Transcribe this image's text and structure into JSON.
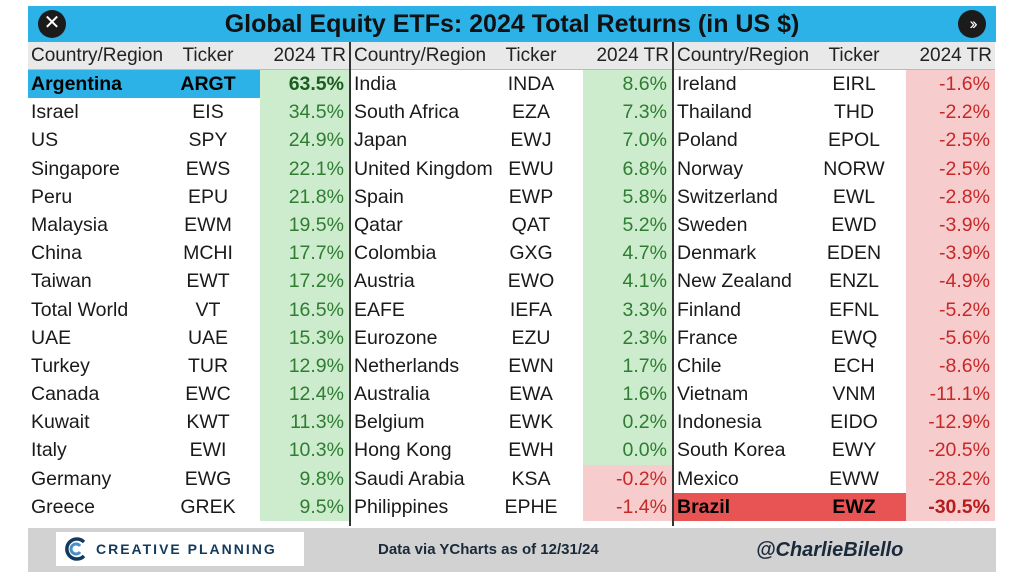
{
  "title": "Global Equity ETFs: 2024 Total Returns (in US $)",
  "icons": {
    "close": "close-icon",
    "next": "double-chevron-right-icon"
  },
  "colors": {
    "title_bar": "#2db2e8",
    "positive_bg": "#cdeccd",
    "positive_text": "#2e7d32",
    "negative_bg": "#f7cccc",
    "negative_text": "#c62828",
    "top_highlight": "#2db2e8",
    "bottom_highlight": "#e85454"
  },
  "headers": {
    "country": "Country/Region",
    "ticker": "Ticker",
    "return": "2024 TR"
  },
  "chart_data": {
    "type": "table",
    "title": "Global Equity ETFs: 2024 Total Returns (in US $)",
    "columns": [
      "Country/Region",
      "Ticker",
      "2024 TR"
    ],
    "rows": [
      {
        "country": "Argentina",
        "ticker": "ARGT",
        "value": 63.5,
        "label": "63.5%"
      },
      {
        "country": "Israel",
        "ticker": "EIS",
        "value": 34.5,
        "label": "34.5%"
      },
      {
        "country": "US",
        "ticker": "SPY",
        "value": 24.9,
        "label": "24.9%"
      },
      {
        "country": "Singapore",
        "ticker": "EWS",
        "value": 22.1,
        "label": "22.1%"
      },
      {
        "country": "Peru",
        "ticker": "EPU",
        "value": 21.8,
        "label": "21.8%"
      },
      {
        "country": "Malaysia",
        "ticker": "EWM",
        "value": 19.5,
        "label": "19.5%"
      },
      {
        "country": "China",
        "ticker": "MCHI",
        "value": 17.7,
        "label": "17.7%"
      },
      {
        "country": "Taiwan",
        "ticker": "EWT",
        "value": 17.2,
        "label": "17.2%"
      },
      {
        "country": "Total World",
        "ticker": "VT",
        "value": 16.5,
        "label": "16.5%"
      },
      {
        "country": "UAE",
        "ticker": "UAE",
        "value": 15.3,
        "label": "15.3%"
      },
      {
        "country": "Turkey",
        "ticker": "TUR",
        "value": 12.9,
        "label": "12.9%"
      },
      {
        "country": "Canada",
        "ticker": "EWC",
        "value": 12.4,
        "label": "12.4%"
      },
      {
        "country": "Kuwait",
        "ticker": "KWT",
        "value": 11.3,
        "label": "11.3%"
      },
      {
        "country": "Italy",
        "ticker": "EWI",
        "value": 10.3,
        "label": "10.3%"
      },
      {
        "country": "Germany",
        "ticker": "EWG",
        "value": 9.8,
        "label": "9.8%"
      },
      {
        "country": "Greece",
        "ticker": "GREK",
        "value": 9.5,
        "label": "9.5%"
      },
      {
        "country": "India",
        "ticker": "INDA",
        "value": 8.6,
        "label": "8.6%"
      },
      {
        "country": "South Africa",
        "ticker": "EZA",
        "value": 7.3,
        "label": "7.3%"
      },
      {
        "country": "Japan",
        "ticker": "EWJ",
        "value": 7.0,
        "label": "7.0%"
      },
      {
        "country": "United Kingdom",
        "ticker": "EWU",
        "value": 6.8,
        "label": "6.8%"
      },
      {
        "country": "Spain",
        "ticker": "EWP",
        "value": 5.8,
        "label": "5.8%"
      },
      {
        "country": "Qatar",
        "ticker": "QAT",
        "value": 5.2,
        "label": "5.2%"
      },
      {
        "country": "Colombia",
        "ticker": "GXG",
        "value": 4.7,
        "label": "4.7%"
      },
      {
        "country": "Austria",
        "ticker": "EWO",
        "value": 4.1,
        "label": "4.1%"
      },
      {
        "country": "EAFE",
        "ticker": "IEFA",
        "value": 3.3,
        "label": "3.3%"
      },
      {
        "country": "Eurozone",
        "ticker": "EZU",
        "value": 2.3,
        "label": "2.3%"
      },
      {
        "country": "Netherlands",
        "ticker": "EWN",
        "value": 1.7,
        "label": "1.7%"
      },
      {
        "country": "Australia",
        "ticker": "EWA",
        "value": 1.6,
        "label": "1.6%"
      },
      {
        "country": "Belgium",
        "ticker": "EWK",
        "value": 0.2,
        "label": "0.2%"
      },
      {
        "country": "Hong Kong",
        "ticker": "EWH",
        "value": 0.0,
        "label": "0.0%"
      },
      {
        "country": "Saudi Arabia",
        "ticker": "KSA",
        "value": -0.2,
        "label": "-0.2%"
      },
      {
        "country": "Philippines",
        "ticker": "EPHE",
        "value": -1.4,
        "label": "-1.4%"
      },
      {
        "country": "Ireland",
        "ticker": "EIRL",
        "value": -1.6,
        "label": "-1.6%"
      },
      {
        "country": "Thailand",
        "ticker": "THD",
        "value": -2.2,
        "label": "-2.2%"
      },
      {
        "country": "Poland",
        "ticker": "EPOL",
        "value": -2.5,
        "label": "-2.5%"
      },
      {
        "country": "Norway",
        "ticker": "NORW",
        "value": -2.5,
        "label": "-2.5%"
      },
      {
        "country": "Switzerland",
        "ticker": "EWL",
        "value": -2.8,
        "label": "-2.8%"
      },
      {
        "country": "Sweden",
        "ticker": "EWD",
        "value": -3.9,
        "label": "-3.9%"
      },
      {
        "country": "Denmark",
        "ticker": "EDEN",
        "value": -3.9,
        "label": "-3.9%"
      },
      {
        "country": "New Zealand",
        "ticker": "ENZL",
        "value": -4.9,
        "label": "-4.9%"
      },
      {
        "country": "Finland",
        "ticker": "EFNL",
        "value": -5.2,
        "label": "-5.2%"
      },
      {
        "country": "France",
        "ticker": "EWQ",
        "value": -5.6,
        "label": "-5.6%"
      },
      {
        "country": "Chile",
        "ticker": "ECH",
        "value": -8.6,
        "label": "-8.6%"
      },
      {
        "country": "Vietnam",
        "ticker": "VNM",
        "value": -11.1,
        "label": "-11.1%"
      },
      {
        "country": "Indonesia",
        "ticker": "EIDO",
        "value": -12.9,
        "label": "-12.9%"
      },
      {
        "country": "South Korea",
        "ticker": "EWY",
        "value": -20.5,
        "label": "-20.5%"
      },
      {
        "country": "Mexico",
        "ticker": "EWW",
        "value": -28.2,
        "label": "-28.2%"
      },
      {
        "country": "Brazil",
        "ticker": "EWZ",
        "value": -30.5,
        "label": "-30.5%"
      }
    ]
  },
  "footer": {
    "logo_text": "CREATIVE PLANNING",
    "source": "Data via YCharts as of 12/31/24",
    "handle": "@CharlieBilello"
  }
}
